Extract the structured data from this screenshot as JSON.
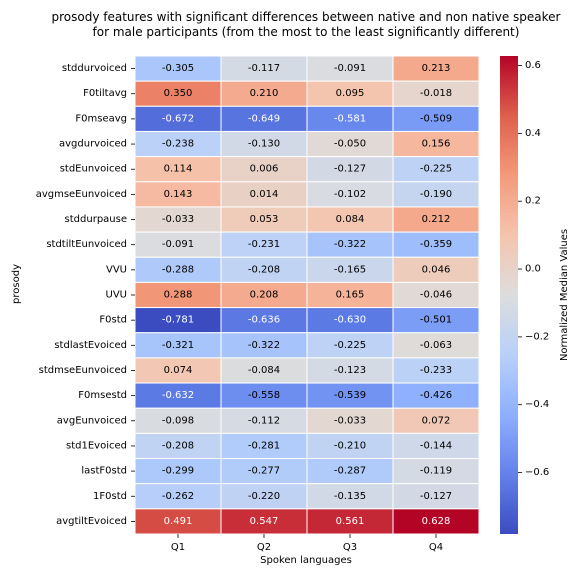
{
  "chart_data": {
    "type": "heatmap",
    "title_line1": "prosody features with significant differences between native and non native speaker",
    "title_line2": "for male participants (from the most to the least significantly different)",
    "xlabel": "Spoken languages",
    "ylabel": "prosody",
    "colorbar_label": "Normalized Median Values",
    "colormap": "coolwarm",
    "vmin": -0.781,
    "vmax": 0.628,
    "colorbar_ticks": [
      -0.6,
      -0.4,
      -0.2,
      0.0,
      0.2,
      0.4,
      0.6
    ],
    "colorbar_tick_labels": [
      "−0.6",
      "−0.4",
      "−0.2",
      "0.0",
      "0.2",
      "0.4",
      "0.6"
    ],
    "columns": [
      "Q1",
      "Q2",
      "Q3",
      "Q4"
    ],
    "rows": [
      "stddurvoiced",
      "F0tiltavg",
      "F0mseavg",
      "avgdurvoiced",
      "stdEunvoiced",
      "avgmseEunvoiced",
      "stddurpause",
      "stdtiltEunvoiced",
      "VVU",
      "UVU",
      "F0std",
      "stdlastEvoiced",
      "stdmseEunvoiced",
      "F0msestd",
      "avgEunvoiced",
      "std1Evoiced",
      "lastF0std",
      "1F0std",
      "avgtiltEvoiced"
    ],
    "values": [
      [
        -0.305,
        -0.117,
        -0.091,
        0.213
      ],
      [
        0.35,
        0.21,
        0.095,
        -0.018
      ],
      [
        -0.672,
        -0.649,
        -0.581,
        -0.509
      ],
      [
        -0.238,
        -0.13,
        -0.05,
        0.156
      ],
      [
        0.114,
        0.006,
        -0.127,
        -0.225
      ],
      [
        0.143,
        0.014,
        -0.102,
        -0.19
      ],
      [
        -0.033,
        0.053,
        0.084,
        0.212
      ],
      [
        -0.091,
        -0.231,
        -0.322,
        -0.359
      ],
      [
        -0.288,
        -0.208,
        -0.165,
        0.046
      ],
      [
        0.288,
        0.208,
        0.165,
        -0.046
      ],
      [
        -0.781,
        -0.636,
        -0.63,
        -0.501
      ],
      [
        -0.321,
        -0.322,
        -0.225,
        -0.063
      ],
      [
        0.074,
        -0.084,
        -0.123,
        -0.233
      ],
      [
        -0.632,
        -0.558,
        -0.539,
        -0.426
      ],
      [
        -0.098,
        -0.112,
        -0.033,
        0.072
      ],
      [
        -0.208,
        -0.281,
        -0.21,
        -0.144
      ],
      [
        -0.299,
        -0.277,
        -0.287,
        -0.119
      ],
      [
        -0.262,
        -0.22,
        -0.135,
        -0.127
      ],
      [
        0.491,
        0.547,
        0.561,
        0.628
      ]
    ],
    "value_labels": [
      [
        "-0.305",
        "-0.117",
        "-0.091",
        "0.213"
      ],
      [
        "0.350",
        "0.210",
        "0.095",
        "-0.018"
      ],
      [
        "-0.672",
        "-0.649",
        "-0.581",
        "-0.509"
      ],
      [
        "-0.238",
        "-0.130",
        "-0.050",
        "0.156"
      ],
      [
        "0.114",
        "0.006",
        "-0.127",
        "-0.225"
      ],
      [
        "0.143",
        "0.014",
        "-0.102",
        "-0.190"
      ],
      [
        "-0.033",
        "0.053",
        "0.084",
        "0.212"
      ],
      [
        "-0.091",
        "-0.231",
        "-0.322",
        "-0.359"
      ],
      [
        "-0.288",
        "-0.208",
        "-0.165",
        "0.046"
      ],
      [
        "0.288",
        "0.208",
        "0.165",
        "-0.046"
      ],
      [
        "-0.781",
        "-0.636",
        "-0.630",
        "-0.501"
      ],
      [
        "-0.321",
        "-0.322",
        "-0.225",
        "-0.063"
      ],
      [
        "0.074",
        "-0.084",
        "-0.123",
        "-0.233"
      ],
      [
        "-0.632",
        "-0.558",
        "-0.539",
        "-0.426"
      ],
      [
        "-0.098",
        "-0.112",
        "-0.033",
        "0.072"
      ],
      [
        "-0.208",
        "-0.281",
        "-0.210",
        "-0.144"
      ],
      [
        "-0.299",
        "-0.277",
        "-0.287",
        "-0.119"
      ],
      [
        "-0.262",
        "-0.220",
        "-0.135",
        "-0.127"
      ],
      [
        "0.491",
        "0.547",
        "0.561",
        "0.628"
      ]
    ],
    "grid": true
  }
}
